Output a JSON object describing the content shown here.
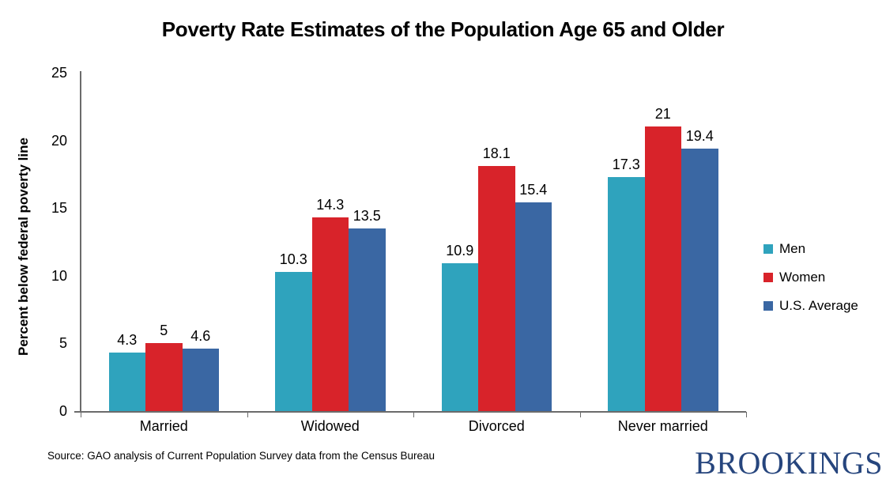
{
  "chart_data": {
    "type": "bar",
    "title": "Poverty Rate Estimates of the Population Age 65 and Older",
    "ylabel": "Percent below federal poverty line",
    "xlabel": "",
    "categories": [
      "Married",
      "Widowed",
      "Divorced",
      "Never married"
    ],
    "series": [
      {
        "name": "Men",
        "color": "#2FA3BD",
        "values": [
          4.3,
          10.3,
          10.9,
          17.3
        ],
        "labels": [
          "4.3",
          "10.3",
          "10.9",
          "17.3"
        ]
      },
      {
        "name": "Women",
        "color": "#D8232A",
        "values": [
          5.0,
          14.3,
          18.1,
          21.0
        ],
        "labels": [
          "5",
          "14.3",
          "18.1",
          "21"
        ]
      },
      {
        "name": "U.S. Average",
        "color": "#3A67A3",
        "values": [
          4.6,
          13.5,
          15.4,
          19.4
        ],
        "labels": [
          "4.6",
          "13.5",
          "15.4",
          "19.4"
        ]
      }
    ],
    "ylim": [
      0,
      25
    ],
    "yticks": [
      0,
      5,
      10,
      15,
      20,
      25
    ],
    "grid": false,
    "legend_position": "right",
    "axis_color": "#6B6B6B",
    "source": "Source: GAO analysis of Current Population Survey data from the Census Bureau"
  },
  "branding": {
    "logo_text": "BROOKINGS",
    "logo_color": "#26457D"
  }
}
